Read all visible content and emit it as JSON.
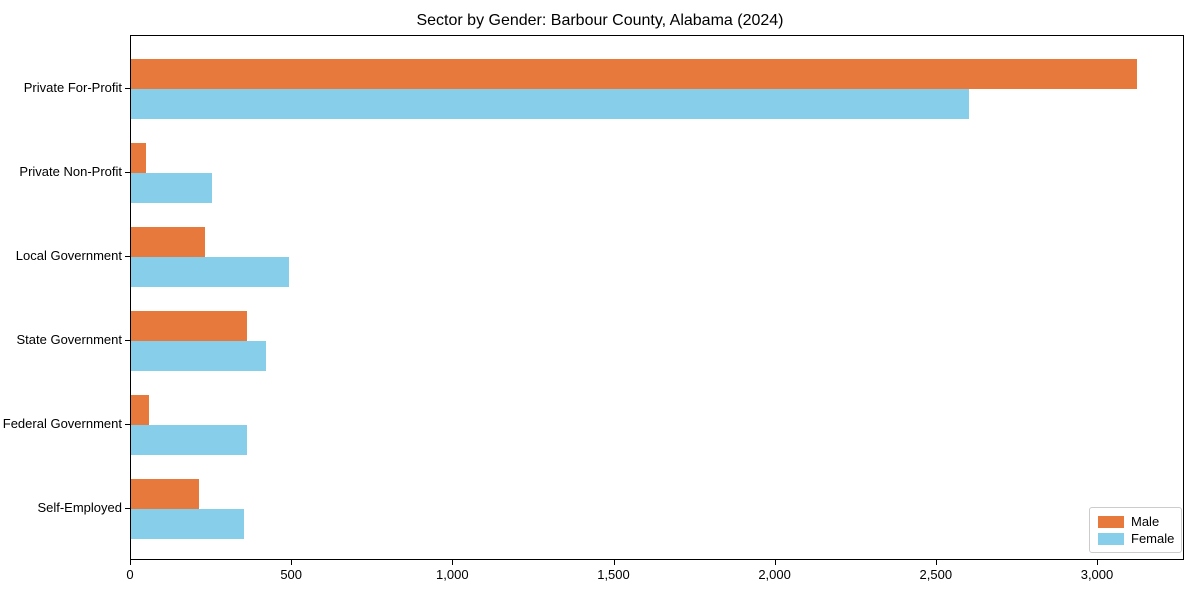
{
  "chart_data": {
    "type": "bar",
    "orientation": "horizontal",
    "title": "Sector by Gender: Barbour County, Alabama (2024)",
    "categories": [
      "Private For-Profit",
      "Private Non-Profit",
      "Local Government",
      "State Government",
      "Federal Government",
      "Self-Employed"
    ],
    "series": [
      {
        "name": "Male",
        "color": "#e8793d",
        "values": [
          3120,
          45,
          230,
          360,
          55,
          210
        ]
      },
      {
        "name": "Female",
        "color": "#87ceeb",
        "values": [
          2600,
          250,
          490,
          420,
          360,
          350
        ]
      }
    ],
    "xlabel": "",
    "ylabel": "",
    "xlim": [
      0,
      3270
    ],
    "x_ticks": [
      0,
      500,
      1000,
      1500,
      2000,
      2500,
      3000
    ],
    "x_tick_labels": [
      "0",
      "500",
      "1,000",
      "1,500",
      "2,000",
      "2,500",
      "3,000"
    ],
    "grid": false,
    "legend_position": "lower right",
    "frame_color": "#000000",
    "background_color": "#ffffff"
  }
}
